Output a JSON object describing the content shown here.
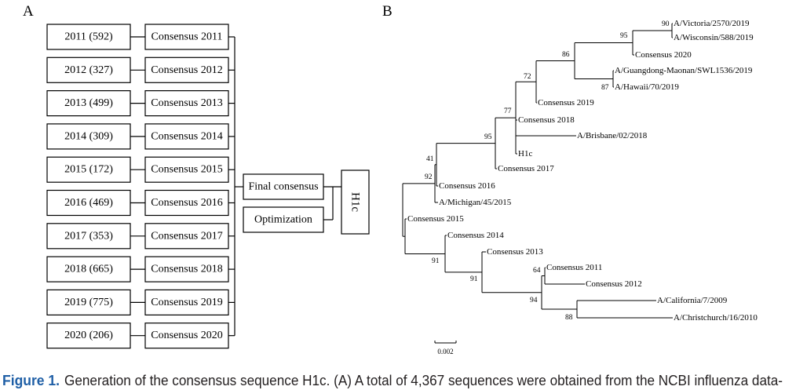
{
  "figure": {
    "panel_a_label": "A",
    "panel_b_label": "B"
  },
  "panel_a": {
    "year_boxes": [
      "2011 (592)",
      "2012 (327)",
      "2013 (499)",
      "2014 (309)",
      "2015 (172)",
      "2016 (469)",
      "2017 (353)",
      "2018 (665)",
      "2019 (775)",
      "2020 (206)"
    ],
    "consensus_boxes": [
      "Consensus 2011",
      "Consensus 2012",
      "Consensus 2013",
      "Consensus 2014",
      "Consensus 2015",
      "Consensus 2016",
      "Consensus 2017",
      "Consensus 2018",
      "Consensus 2019",
      "Consensus 2020"
    ],
    "final_consensus_box": "Final consensus",
    "optimization_box": "Optimization",
    "result_box": "H1c"
  },
  "panel_b": {
    "leaves": [
      "A/Victoria/2570/2019",
      "A/Wisconsin/588/2019",
      "Consensus 2020",
      "A/Guangdong-Maonan/SWL1536/2019",
      "A/Hawaii/70/2019",
      "Consensus 2019",
      "Consensus 2018",
      "A/Brisbane/02/2018",
      "H1c",
      "Consensus 2017",
      "Consensus 2016",
      "A/Michigan/45/2015",
      "Consensus 2015",
      "Consensus 2014",
      "Consensus 2013",
      "Consensus 2011",
      "Consensus 2012",
      "A/California/7/2009",
      "A/Christchurch/16/2010"
    ],
    "bootstrap_values": [
      "90",
      "95",
      "86",
      "72",
      "87",
      "77",
      "95",
      "41",
      "92",
      "91",
      "64",
      "91",
      "94",
      "88"
    ],
    "scale_bar_label": "0.002"
  },
  "caption": {
    "label": "Figure 1.",
    "text": "Generation of the consensus sequence H1c. (A) A total of 4,367 sequences were obtained from the NCBI influenza data-"
  },
  "colors": {
    "caption_label": "#1f5fa6",
    "caption_text": "#231f20",
    "lines": "#000000"
  }
}
